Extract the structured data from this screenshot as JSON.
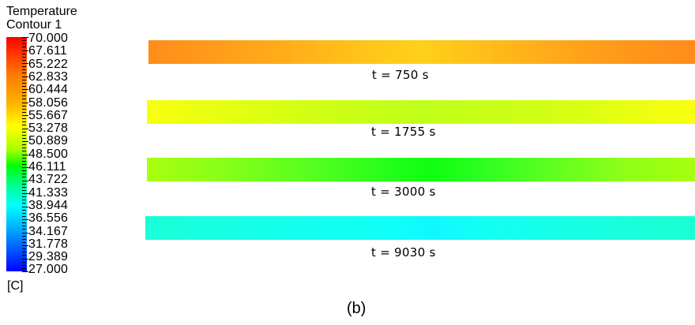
{
  "legend": {
    "title_line1": "Temperature",
    "title_line2": "Contour 1",
    "unit": "[C]",
    "tick_labels": [
      "70.000",
      "67.611",
      "65.222",
      "62.833",
      "60.444",
      "58.056",
      "55.667",
      "53.278",
      "50.889",
      "48.500",
      "46.111",
      "43.722",
      "41.333",
      "38.944",
      "36.556",
      "34.167",
      "31.778",
      "29.389",
      "27.000"
    ],
    "colors": [
      "#ff0000",
      "#ff7a00",
      "#ffb000",
      "#ffff00",
      "#aaff00",
      "#00ff00",
      "#00ff80",
      "#00ffff",
      "#00aaff",
      "#0000ff"
    ]
  },
  "strips": [
    {
      "label": "t = 750 s"
    },
    {
      "label": "t = 1755 s"
    },
    {
      "label": "t = 3000 s"
    },
    {
      "label": "t = 9030 s"
    }
  ],
  "caption": "(b)"
}
